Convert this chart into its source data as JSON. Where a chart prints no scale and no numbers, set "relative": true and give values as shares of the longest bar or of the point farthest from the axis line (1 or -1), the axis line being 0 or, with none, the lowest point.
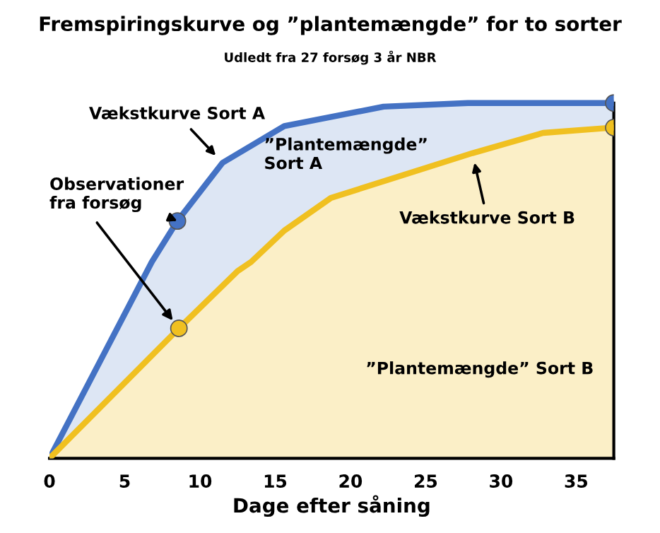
{
  "chart_data": {
    "type": "area",
    "relative": true,
    "title": "Fremspiringskurve og ”plantemængde” for to sorter",
    "subtitle": "Udledt fra 27 forsøg 3 år NBR",
    "xlabel": "Dage efter såning",
    "xlim": [
      0,
      37.5
    ],
    "xticks": [
      0,
      5,
      10,
      15,
      20,
      25,
      30,
      35
    ],
    "grid": false,
    "series": [
      {
        "color": "#4472c4",
        "x": [
          0,
          6.8,
          8.5,
          11.5,
          15.6,
          22.2,
          27.8,
          37.5
        ],
        "values": [
          0,
          0.553,
          0.668,
          0.832,
          0.935,
          0.99,
          1.0,
          1.0
        ],
        "marker": "none"
      },
      {
        "color": "#f0c020",
        "x": [
          0,
          8.6,
          12.5,
          13.4,
          15.6,
          18.7,
          28.1,
          32.8,
          37.5
        ],
        "values": [
          0,
          0.366,
          0.527,
          0.553,
          0.641,
          0.733,
          0.859,
          0.916,
          0.931
        ],
        "marker": "none"
      },
      {
        "type": "scatter",
        "color": "#4472c4",
        "x": [
          8.5,
          37.5
        ],
        "values": [
          0.668,
          1.0
        ],
        "marker": "circle"
      },
      {
        "type": "scatter",
        "color": "#f0c020",
        "x": [
          8.6,
          37.5
        ],
        "values": [
          0.366,
          0.931
        ],
        "marker": "circle"
      }
    ],
    "annotations": [
      {
        "text": "Vækstkurve Sort A",
        "x": 11.5,
        "y": 0.832
      },
      {
        "text": "Vækstkurve Sort B",
        "x": 28.1,
        "y": 0.859
      },
      {
        "text": "Observationer\nfra forsøg",
        "x": 8.5,
        "y": 0.668
      },
      "”Plantemængde”\nSort A",
      "”Plantemængde” Sort B"
    ]
  }
}
